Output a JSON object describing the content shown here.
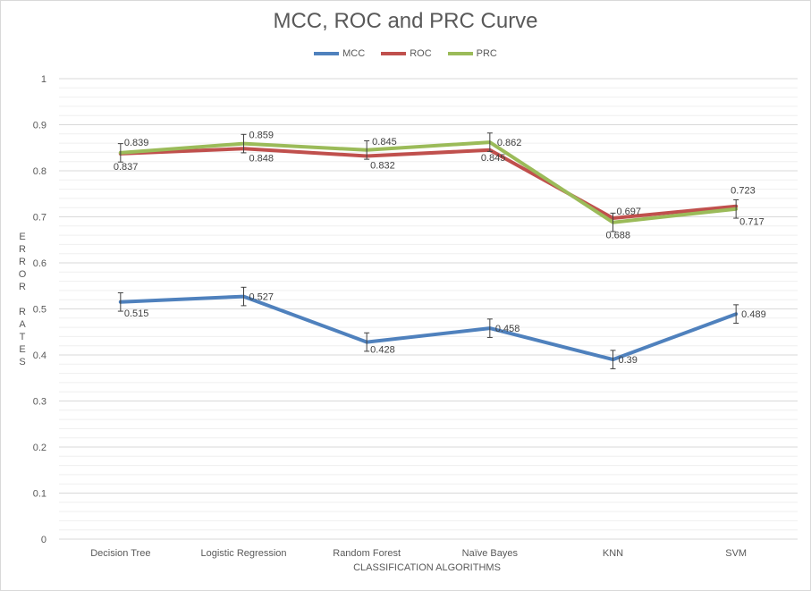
{
  "chart_data": {
    "type": "line",
    "title": "MCC, ROC and PRC Curve",
    "xlabel": "CLASSIFICATION ALGORITHMS",
    "ylabel": "ERROR RATES",
    "ylabel_groups": [
      "ERROR",
      "RATES"
    ],
    "categories": [
      "Decision Tree",
      "Logistic Regression",
      "Random Forest",
      "Naïve Bayes",
      "KNN",
      "SVM"
    ],
    "ylim": [
      0,
      1
    ],
    "yticks": [
      "0",
      "0.1",
      "0.2",
      "0.3",
      "0.4",
      "0.5",
      "0.6",
      "0.7",
      "0.8",
      "0.9",
      "1"
    ],
    "grid": true,
    "error_bars": true,
    "legend_position": "top",
    "series": [
      {
        "name": "MCC",
        "color": "#4f81bd",
        "values": [
          0.515,
          0.527,
          0.428,
          0.458,
          0.39,
          0.489
        ],
        "labels": [
          "0.515",
          "0.527",
          "0.428",
          "0.458",
          "0.39",
          "0.489"
        ]
      },
      {
        "name": "ROC",
        "color": "#c0504d",
        "values": [
          0.837,
          0.848,
          0.832,
          0.845,
          0.697,
          0.723
        ],
        "labels": [
          "0.837",
          "0.848",
          "0.832",
          "0.845",
          "0.697",
          "0.723"
        ]
      },
      {
        "name": "PRC",
        "color": "#9bbb59",
        "values": [
          0.839,
          0.859,
          0.845,
          0.862,
          0.688,
          0.717
        ],
        "labels": [
          "0.839",
          "0.859",
          "0.845",
          "0.862",
          "0.688",
          "0.717"
        ]
      }
    ]
  }
}
